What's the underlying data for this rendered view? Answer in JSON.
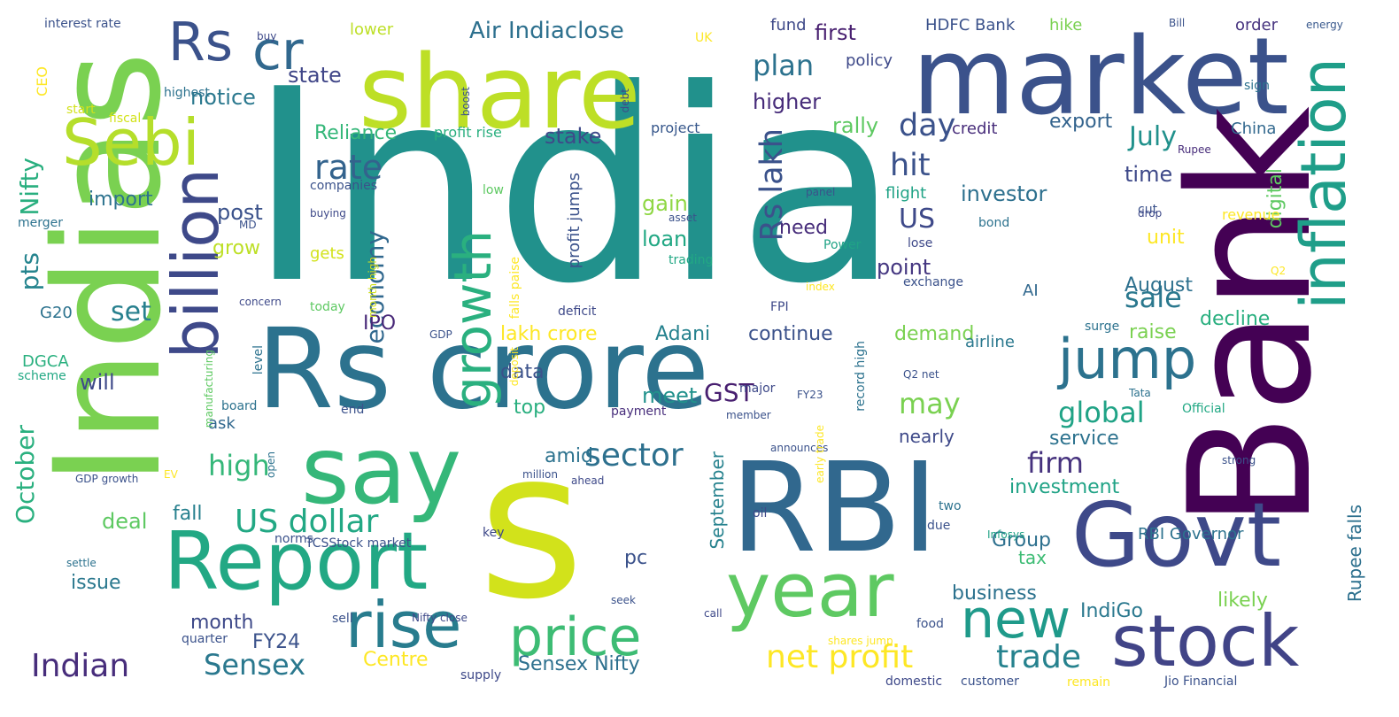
{
  "words": [
    {
      "text": "India",
      "color": "#21918c"
    },
    {
      "text": "share",
      "color": "#bddf26"
    },
    {
      "text": "market",
      "color": "#3b528b"
    },
    {
      "text": "Bank",
      "color": "#440154"
    },
    {
      "text": "Indias",
      "color": "#7ad151"
    },
    {
      "text": "Rs crore",
      "color": "#2c728e"
    },
    {
      "text": "RBI",
      "color": "#31688e"
    },
    {
      "text": "s",
      "color": "#d2e21b"
    },
    {
      "text": "say",
      "color": "#35b779"
    },
    {
      "text": "Govt",
      "color": "#3e4989"
    },
    {
      "text": "Report",
      "color": "#22a884"
    },
    {
      "text": "year",
      "color": "#5ec962"
    },
    {
      "text": "stock",
      "color": "#414487"
    },
    {
      "text": "Sebi",
      "color": "#b5de2b"
    },
    {
      "text": "Rs",
      "color": "#3b528b"
    },
    {
      "text": "cr",
      "color": "#31688e"
    },
    {
      "text": "billion",
      "color": "#3e4989"
    },
    {
      "text": "growth",
      "color": "#2ab07f"
    },
    {
      "text": "inflation",
      "color": "#1f9e89"
    },
    {
      "text": "jump",
      "color": "#2c728e"
    },
    {
      "text": "rise",
      "color": "#287c8e"
    },
    {
      "text": "price",
      "color": "#3dbc74"
    },
    {
      "text": "new",
      "color": "#1f9a8a"
    },
    {
      "text": "net profit",
      "color": "#fde725"
    },
    {
      "text": "trade",
      "color": "#26828e"
    },
    {
      "text": "Indian",
      "color": "#472d7b"
    },
    {
      "text": "Sensex",
      "color": "#2a788e"
    },
    {
      "text": "US dollar",
      "color": "#22a884"
    },
    {
      "text": "sector",
      "color": "#2d708e"
    },
    {
      "text": "October",
      "color": "#2ab07f"
    },
    {
      "text": "Nifty",
      "color": "#29af7f"
    },
    {
      "text": "pts",
      "color": "#25848e"
    },
    {
      "text": "plan",
      "color": "#2c728e"
    },
    {
      "text": "rate",
      "color": "#33638d"
    },
    {
      "text": "economy",
      "color": "#31688e"
    },
    {
      "text": "Rs lakh",
      "color": "#3b528b"
    },
    {
      "text": "day",
      "color": "#3b528b"
    },
    {
      "text": "hit",
      "color": "#3b528b"
    },
    {
      "text": "US",
      "color": "#3e4989"
    },
    {
      "text": "July",
      "color": "#21918c"
    },
    {
      "text": "may",
      "color": "#7ad151"
    },
    {
      "text": "global",
      "color": "#20a386"
    },
    {
      "text": "sale",
      "color": "#2a788e"
    },
    {
      "text": "GST",
      "color": "#481f70"
    },
    {
      "text": "high",
      "color": "#35b779"
    },
    {
      "text": "firm",
      "color": "#46327e"
    },
    {
      "text": "Air Indiaclose",
      "color": "#2d708e"
    },
    {
      "text": "notice",
      "color": "#2a788e"
    },
    {
      "text": "state",
      "color": "#404688"
    },
    {
      "text": "Reliance",
      "color": "#35b779"
    },
    {
      "text": "stake",
      "color": "#3e4989"
    },
    {
      "text": "import",
      "color": "#2c728e"
    },
    {
      "text": "post",
      "color": "#3b528b"
    },
    {
      "text": "set",
      "color": "#27808e"
    },
    {
      "text": "IPO",
      "color": "#482878"
    },
    {
      "text": "lakh crore",
      "color": "#fde725"
    },
    {
      "text": "Adani",
      "color": "#26828e"
    },
    {
      "text": "continue",
      "color": "#3b528b"
    },
    {
      "text": "demand",
      "color": "#7ad151"
    },
    {
      "text": "higher",
      "color": "#472c7a"
    },
    {
      "text": "first",
      "color": "#481f70"
    },
    {
      "text": "fund",
      "color": "#3e4989"
    },
    {
      "text": "HDFC Bank",
      "color": "#3b528b"
    },
    {
      "text": "hike",
      "color": "#7ad151"
    },
    {
      "text": "order",
      "color": "#46337f"
    },
    {
      "text": "policy",
      "color": "#3e4989"
    },
    {
      "text": "export",
      "color": "#33638d"
    },
    {
      "text": "rally",
      "color": "#5ec962"
    },
    {
      "text": "credit",
      "color": "#472c7a"
    },
    {
      "text": "investor",
      "color": "#2d708e"
    },
    {
      "text": "flight",
      "color": "#20a386"
    },
    {
      "text": "time",
      "color": "#3e4989"
    },
    {
      "text": "digital",
      "color": "#5ec962"
    },
    {
      "text": "China",
      "color": "#31688e"
    },
    {
      "text": "project",
      "color": "#38588c"
    },
    {
      "text": "profit rise",
      "color": "#29af7f"
    },
    {
      "text": "gain",
      "color": "#8fd744"
    },
    {
      "text": "loan",
      "color": "#22a884"
    },
    {
      "text": "need",
      "color": "#472d7b"
    },
    {
      "text": "grow",
      "color": "#bddf26"
    },
    {
      "text": "unit",
      "color": "#fde725"
    },
    {
      "text": "point",
      "color": "#453781"
    },
    {
      "text": "August",
      "color": "#2d708e"
    },
    {
      "text": "AI",
      "color": "#31688e"
    },
    {
      "text": "decline",
      "color": "#29af7f"
    },
    {
      "text": "raise",
      "color": "#7ad151"
    },
    {
      "text": "meet",
      "color": "#21918c"
    },
    {
      "text": "data",
      "color": "#3b528b"
    },
    {
      "text": "top",
      "color": "#29af7f"
    },
    {
      "text": "amid",
      "color": "#2c728e"
    },
    {
      "text": "will",
      "color": "#3e4989"
    },
    {
      "text": "ask",
      "color": "#31688e"
    },
    {
      "text": "fall",
      "color": "#27808e"
    },
    {
      "text": "deal",
      "color": "#5ec962"
    },
    {
      "text": "issue",
      "color": "#2a788e"
    },
    {
      "text": "month",
      "color": "#3e4989"
    },
    {
      "text": "FY24",
      "color": "#3b528b"
    },
    {
      "text": "Centre",
      "color": "#fde725"
    },
    {
      "text": "Sensex Nifty",
      "color": "#2d708e"
    },
    {
      "text": "investment",
      "color": "#20a386"
    },
    {
      "text": "service",
      "color": "#2c728e"
    },
    {
      "text": "nearly",
      "color": "#3e4989"
    },
    {
      "text": "business",
      "color": "#2c728e"
    },
    {
      "text": "Group",
      "color": "#2d708e"
    },
    {
      "text": "tax",
      "color": "#3dbc74"
    },
    {
      "text": "RBI Governor",
      "color": "#2c728e"
    },
    {
      "text": "IndiGo",
      "color": "#2a788e"
    },
    {
      "text": "likely",
      "color": "#7ad151"
    },
    {
      "text": "Rupee falls",
      "color": "#2d708e"
    },
    {
      "text": "pc",
      "color": "#3b528b"
    },
    {
      "text": "September",
      "color": "#26828e"
    },
    {
      "text": "profit jumps",
      "color": "#3b528b"
    },
    {
      "text": "airline",
      "color": "#2a788e"
    },
    {
      "text": "CEO",
      "color": "#fde725"
    },
    {
      "text": "G20",
      "color": "#2c728e"
    },
    {
      "text": "DGCA",
      "color": "#2ab07f"
    },
    {
      "text": "interest rate",
      "color": "#3b528b"
    },
    {
      "text": "lower",
      "color": "#bddf26"
    },
    {
      "text": "buy",
      "color": "#3e4989"
    },
    {
      "text": "highest",
      "color": "#2c728e"
    },
    {
      "text": "start",
      "color": "#d2e21b"
    },
    {
      "text": "fiscal",
      "color": "#d2e21b"
    },
    {
      "text": "boost",
      "color": "#3b528b"
    },
    {
      "text": "debt",
      "color": "#3e4989"
    },
    {
      "text": "UK",
      "color": "#fde725"
    },
    {
      "text": "Bill",
      "color": "#3b528b"
    },
    {
      "text": "energy",
      "color": "#38588c"
    },
    {
      "text": "sign",
      "color": "#2c728e"
    },
    {
      "text": "Rupee",
      "color": "#472c7a"
    },
    {
      "text": "companies",
      "color": "#3b528b"
    },
    {
      "text": "low",
      "color": "#5ec962"
    },
    {
      "text": "buying",
      "color": "#3e4989"
    },
    {
      "text": "MD",
      "color": "#3b528b"
    },
    {
      "text": "asset",
      "color": "#3b528b"
    },
    {
      "text": "cut",
      "color": "#3b528b"
    },
    {
      "text": "bond",
      "color": "#2c728e"
    },
    {
      "text": "drop",
      "color": "#3e4989"
    },
    {
      "text": "revenue",
      "color": "#fde725"
    },
    {
      "text": "panel",
      "color": "#3b528b"
    },
    {
      "text": "lose",
      "color": "#3e4989"
    },
    {
      "text": "merger",
      "color": "#2c728e"
    },
    {
      "text": "gets",
      "color": "#d2e21b"
    },
    {
      "text": "today",
      "color": "#5ec962"
    },
    {
      "text": "concern",
      "color": "#3e4989"
    },
    {
      "text": "month high",
      "color": "#d2e21b"
    },
    {
      "text": "falls paise",
      "color": "#fde725"
    },
    {
      "text": "trading",
      "color": "#22a884"
    },
    {
      "text": "Power",
      "color": "#20a386"
    },
    {
      "text": "index",
      "color": "#fde725"
    },
    {
      "text": "exchange",
      "color": "#3b528b"
    },
    {
      "text": "Q2",
      "color": "#fde725"
    },
    {
      "text": "deficit",
      "color": "#3e4989"
    },
    {
      "text": "FPI",
      "color": "#3e4989"
    },
    {
      "text": "surge",
      "color": "#2c728e"
    },
    {
      "text": "GDP",
      "color": "#3b528b"
    },
    {
      "text": "deposit",
      "color": "#fde725"
    },
    {
      "text": "scheme",
      "color": "#22a884"
    },
    {
      "text": "manufacturing",
      "color": "#5ec962"
    },
    {
      "text": "level",
      "color": "#2c728e"
    },
    {
      "text": "board",
      "color": "#2c728e"
    },
    {
      "text": "end",
      "color": "#3b528b"
    },
    {
      "text": "record high",
      "color": "#2c728e"
    },
    {
      "text": "major",
      "color": "#3e4989"
    },
    {
      "text": "FY23",
      "color": "#3b528b"
    },
    {
      "text": "Q2 net",
      "color": "#3b528b"
    },
    {
      "text": "Tata",
      "color": "#2c728e"
    },
    {
      "text": "Official",
      "color": "#22a884"
    },
    {
      "text": "payment",
      "color": "#472d7b"
    },
    {
      "text": "member",
      "color": "#3b528b"
    },
    {
      "text": "announces",
      "color": "#3b528b"
    },
    {
      "text": "strong",
      "color": "#3b528b"
    },
    {
      "text": "early trade",
      "color": "#fde725"
    },
    {
      "text": "GDP growth",
      "color": "#3b528b"
    },
    {
      "text": "EV",
      "color": "#fde725"
    },
    {
      "text": "open",
      "color": "#2c728e"
    },
    {
      "text": "million",
      "color": "#3b528b"
    },
    {
      "text": "ahead",
      "color": "#3e4989"
    },
    {
      "text": "oil",
      "color": "#3e4989"
    },
    {
      "text": "two",
      "color": "#2c728e"
    },
    {
      "text": "due",
      "color": "#3b528b"
    },
    {
      "text": "Infosys",
      "color": "#20a386"
    },
    {
      "text": "norms",
      "color": "#3b528b"
    },
    {
      "text": "TCSStock market",
      "color": "#3b528b"
    },
    {
      "text": "key",
      "color": "#3e4989"
    },
    {
      "text": "settle",
      "color": "#2c728e"
    },
    {
      "text": "sell",
      "color": "#3b528b"
    },
    {
      "text": "Nifty close",
      "color": "#3e4989"
    },
    {
      "text": "seek",
      "color": "#3b528b"
    },
    {
      "text": "call",
      "color": "#3e4989"
    },
    {
      "text": "food",
      "color": "#3b528b"
    },
    {
      "text": "quarter",
      "color": "#3b528b"
    },
    {
      "text": "shares jump",
      "color": "#fde725"
    },
    {
      "text": "supply",
      "color": "#3e4989"
    },
    {
      "text": "domestic",
      "color": "#3e4989"
    },
    {
      "text": "customer",
      "color": "#3b528b"
    },
    {
      "text": "remain",
      "color": "#fde725"
    },
    {
      "text": "Jio Financial",
      "color": "#3b528b"
    }
  ]
}
